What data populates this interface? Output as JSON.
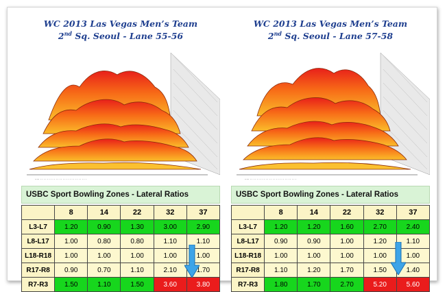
{
  "chart_data": [
    {
      "type": "table",
      "title_line1": "WC 2013 Las Vegas Men’s Team",
      "title_line2_prefix": "2",
      "title_line2_sup": "nd",
      "title_line2_rest": " Sq. Seoul - Lane 55-56",
      "chart_type_graphic": "3d-area",
      "table_title": "USBC Sport Bowling Zones - Lateral Ratios",
      "columns": [
        "8",
        "14",
        "22",
        "32",
        "37"
      ],
      "rows": [
        {
          "label": "L3-L7",
          "values": [
            "1.20",
            "0.90",
            "1.30",
            "3.00",
            "2.90"
          ],
          "colors": [
            "#17d61d",
            "#17d61d",
            "#17d61d",
            "#17d61d",
            "#17d61d"
          ]
        },
        {
          "label": "L8-L17",
          "values": [
            "1.00",
            "0.80",
            "0.80",
            "1.10",
            "1.10"
          ],
          "colors": [
            "#fdf8cf",
            "#fdf8cf",
            "#fdf8cf",
            "#fdf8cf",
            "#fdf8cf"
          ]
        },
        {
          "label": "L18-R18",
          "values": [
            "1.00",
            "1.00",
            "1.00",
            "1.00",
            "1.00"
          ],
          "colors": [
            "#fdf8cf",
            "#fdf8cf",
            "#fdf8cf",
            "#fdf8cf",
            "#fdf8cf"
          ]
        },
        {
          "label": "R17-R8",
          "values": [
            "0.90",
            "0.70",
            "1.10",
            "2.10",
            "1.70"
          ],
          "colors": [
            "#fdf8cf",
            "#fdf8cf",
            "#fdf8cf",
            "#fdf8cf",
            "#fdf8cf"
          ]
        },
        {
          "label": "R7-R3",
          "values": [
            "1.50",
            "1.10",
            "1.50",
            "3.60",
            "3.80"
          ],
          "colors": [
            "#17d61d",
            "#17d61d",
            "#17d61d",
            "#ea1c1c",
            "#ea1c1c"
          ]
        }
      ]
    },
    {
      "type": "table",
      "title_line1": "WC 2013 Las Vegas Men’s Team",
      "title_line2_prefix": "2",
      "title_line2_sup": "nd",
      "title_line2_rest": " Sq. Seoul - Lane 57-58",
      "chart_type_graphic": "3d-area",
      "table_title": "USBC Sport Bowling Zones - Lateral Ratios",
      "columns": [
        "8",
        "14",
        "22",
        "32",
        "37"
      ],
      "rows": [
        {
          "label": "L3-L7",
          "values": [
            "1.20",
            "1.20",
            "1.60",
            "2.70",
            "2.40"
          ],
          "colors": [
            "#17d61d",
            "#17d61d",
            "#17d61d",
            "#17d61d",
            "#17d61d"
          ]
        },
        {
          "label": "L8-L17",
          "values": [
            "0.90",
            "0.90",
            "1.00",
            "1.20",
            "1.10"
          ],
          "colors": [
            "#fdf8cf",
            "#fdf8cf",
            "#fdf8cf",
            "#fdf8cf",
            "#fdf8cf"
          ]
        },
        {
          "label": "L18-R18",
          "values": [
            "1.00",
            "1.00",
            "1.00",
            "1.00",
            "1.00"
          ],
          "colors": [
            "#fdf8cf",
            "#fdf8cf",
            "#fdf8cf",
            "#fdf8cf",
            "#fdf8cf"
          ]
        },
        {
          "label": "R17-R8",
          "values": [
            "1.10",
            "1.20",
            "1.70",
            "1.50",
            "1.40"
          ],
          "colors": [
            "#fdf8cf",
            "#fdf8cf",
            "#fdf8cf",
            "#fdf8cf",
            "#fdf8cf"
          ]
        },
        {
          "label": "R7-R3",
          "values": [
            "1.80",
            "1.70",
            "2.70",
            "5.20",
            "5.60"
          ],
          "colors": [
            "#17d61d",
            "#17d61d",
            "#17d61d",
            "#ea1c1c",
            "#ea1c1c"
          ]
        }
      ]
    }
  ]
}
